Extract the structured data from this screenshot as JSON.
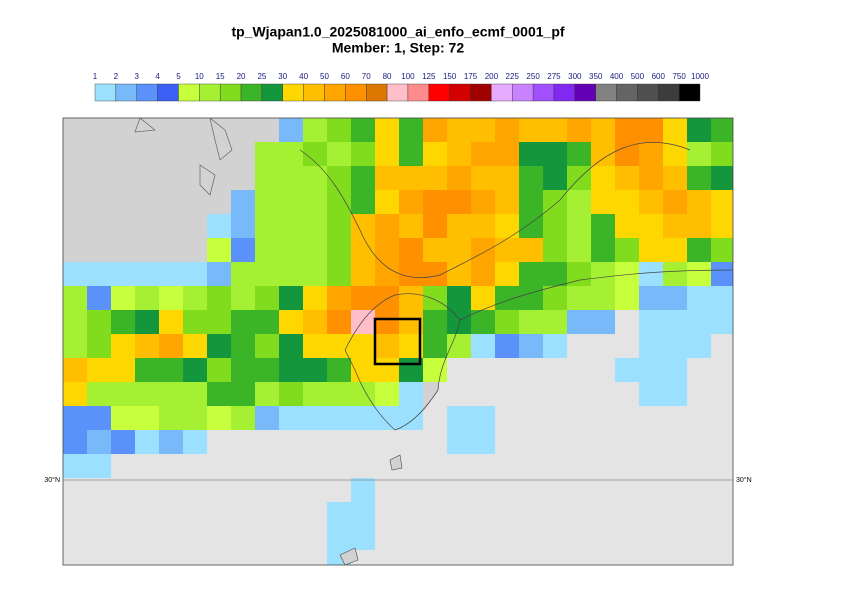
{
  "header": {
    "title": "tp_Wjapan1.0_2025081000_ai_enfo_ecmf_0001_pf",
    "subtitle": "Member: 1, Step: 72"
  },
  "colorbar": {
    "levels": [
      1,
      2,
      3,
      4,
      5,
      10,
      15,
      20,
      25,
      30,
      40,
      50,
      60,
      70,
      80,
      100,
      125,
      150,
      175,
      200,
      225,
      250,
      275,
      300,
      350,
      400,
      500,
      600,
      750,
      1000
    ],
    "colors": [
      "#9be1ff",
      "#78b9fa",
      "#5a91fa",
      "#3c5ff5",
      "#c8ff3c",
      "#a5f032",
      "#82dc1e",
      "#3cb428",
      "#14963c",
      "#ffd700",
      "#ffbe00",
      "#ffa500",
      "#ff9100",
      "#dc7800",
      "#ffbec8",
      "#ff8c8c",
      "#ff0000",
      "#d20000",
      "#a00000",
      "#e6aaff",
      "#c882ff",
      "#a050ff",
      "#8228f0",
      "#6400b4",
      "#828282",
      "#646464",
      "#505050",
      "#3c3c3c",
      "#000000"
    ]
  },
  "map": {
    "lat_label": "30°N",
    "grid": {
      "rows": [
        [
          null,
          null,
          null,
          null,
          null,
          null,
          null,
          null,
          null,
          2,
          10,
          15,
          20,
          30,
          20,
          50,
          40,
          40,
          50,
          40,
          40,
          50,
          40,
          60,
          60,
          30,
          25,
          20
        ],
        [
          null,
          null,
          null,
          null,
          null,
          null,
          null,
          null,
          10,
          10,
          15,
          10,
          15,
          30,
          20,
          30,
          40,
          50,
          50,
          25,
          25,
          20,
          40,
          60,
          50,
          30,
          10,
          15
        ],
        [
          null,
          null,
          null,
          null,
          null,
          null,
          null,
          null,
          10,
          10,
          10,
          15,
          20,
          40,
          40,
          40,
          50,
          40,
          40,
          20,
          25,
          15,
          30,
          40,
          50,
          40,
          20,
          25
        ],
        [
          null,
          null,
          null,
          null,
          null,
          null,
          null,
          2,
          10,
          10,
          10,
          15,
          20,
          30,
          50,
          60,
          60,
          50,
          40,
          20,
          15,
          10,
          30,
          30,
          40,
          50,
          40,
          30
        ],
        [
          null,
          null,
          null,
          null,
          null,
          null,
          1,
          2,
          10,
          10,
          10,
          15,
          40,
          50,
          40,
          60,
          40,
          40,
          30,
          20,
          15,
          10,
          20,
          30,
          30,
          40,
          40,
          30
        ],
        [
          null,
          null,
          null,
          null,
          null,
          null,
          5,
          3,
          10,
          10,
          10,
          15,
          40,
          50,
          60,
          40,
          40,
          50,
          40,
          40,
          15,
          10,
          20,
          15,
          30,
          30,
          20,
          15
        ],
        [
          1,
          1,
          1,
          1,
          1,
          1,
          2,
          10,
          10,
          10,
          10,
          15,
          40,
          50,
          60,
          60,
          40,
          50,
          30,
          20,
          20,
          15,
          10,
          5,
          1,
          10,
          5,
          3
        ],
        [
          10,
          3,
          5,
          10,
          5,
          10,
          15,
          10,
          15,
          25,
          30,
          50,
          60,
          60,
          40,
          15,
          25,
          30,
          20,
          20,
          15,
          10,
          10,
          5,
          2,
          2,
          1,
          1
        ],
        [
          10,
          15,
          20,
          25,
          30,
          15,
          15,
          20,
          20,
          30,
          40,
          60,
          80,
          60,
          40,
          20,
          25,
          20,
          15,
          10,
          10,
          2,
          2,
          null,
          1,
          1,
          1,
          1
        ],
        [
          10,
          15,
          30,
          40,
          50,
          30,
          25,
          20,
          15,
          25,
          30,
          30,
          30,
          40,
          30,
          20,
          10,
          1,
          3,
          2,
          1,
          null,
          null,
          null,
          1,
          1,
          1,
          null
        ],
        [
          40,
          30,
          30,
          20,
          20,
          25,
          15,
          20,
          20,
          25,
          25,
          20,
          30,
          30,
          25,
          5,
          null,
          null,
          null,
          null,
          null,
          null,
          null,
          1,
          1,
          1,
          null,
          null
        ],
        [
          30,
          10,
          10,
          10,
          10,
          10,
          20,
          20,
          10,
          15,
          10,
          10,
          10,
          5,
          1,
          null,
          null,
          null,
          null,
          null,
          null,
          null,
          null,
          null,
          1,
          1,
          null,
          null
        ],
        [
          3,
          3,
          5,
          5,
          10,
          10,
          5,
          10,
          2,
          1,
          1,
          1,
          1,
          1,
          1,
          null,
          1,
          1,
          null,
          null,
          null,
          null,
          null,
          null,
          null,
          null,
          null,
          null
        ],
        [
          3,
          2,
          3,
          1,
          2,
          1,
          null,
          null,
          null,
          null,
          null,
          null,
          null,
          null,
          null,
          null,
          1,
          1,
          null,
          null,
          null,
          null,
          null,
          null,
          null,
          null,
          null,
          null
        ],
        [
          1,
          1,
          null,
          null,
          null,
          null,
          null,
          null,
          null,
          null,
          null,
          null,
          null,
          null,
          null,
          null,
          null,
          null,
          null,
          null,
          null,
          null,
          null,
          null,
          null,
          null,
          null,
          null
        ],
        [
          null,
          null,
          null,
          null,
          null,
          null,
          null,
          null,
          null,
          null,
          null,
          null,
          1,
          null,
          null,
          null,
          null,
          null,
          null,
          null,
          null,
          null,
          null,
          null,
          null,
          null,
          null,
          null
        ],
        [
          null,
          null,
          null,
          null,
          null,
          null,
          null,
          null,
          null,
          null,
          null,
          1,
          1,
          null,
          null,
          null,
          null,
          null,
          null,
          null,
          null,
          null,
          null,
          null,
          null,
          null,
          null,
          null
        ],
        [
          null,
          null,
          null,
          null,
          null,
          null,
          null,
          null,
          null,
          null,
          null,
          1,
          1,
          null,
          null,
          null,
          null,
          null,
          null,
          null,
          null,
          null,
          null,
          null,
          null,
          null,
          null,
          null
        ],
        [
          null,
          null,
          null,
          null,
          null,
          null,
          null,
          null,
          null,
          null,
          null,
          1,
          null,
          null,
          null,
          null,
          null,
          null,
          null,
          null,
          null,
          null,
          null,
          null,
          null,
          null,
          null,
          null
        ]
      ]
    }
  }
}
